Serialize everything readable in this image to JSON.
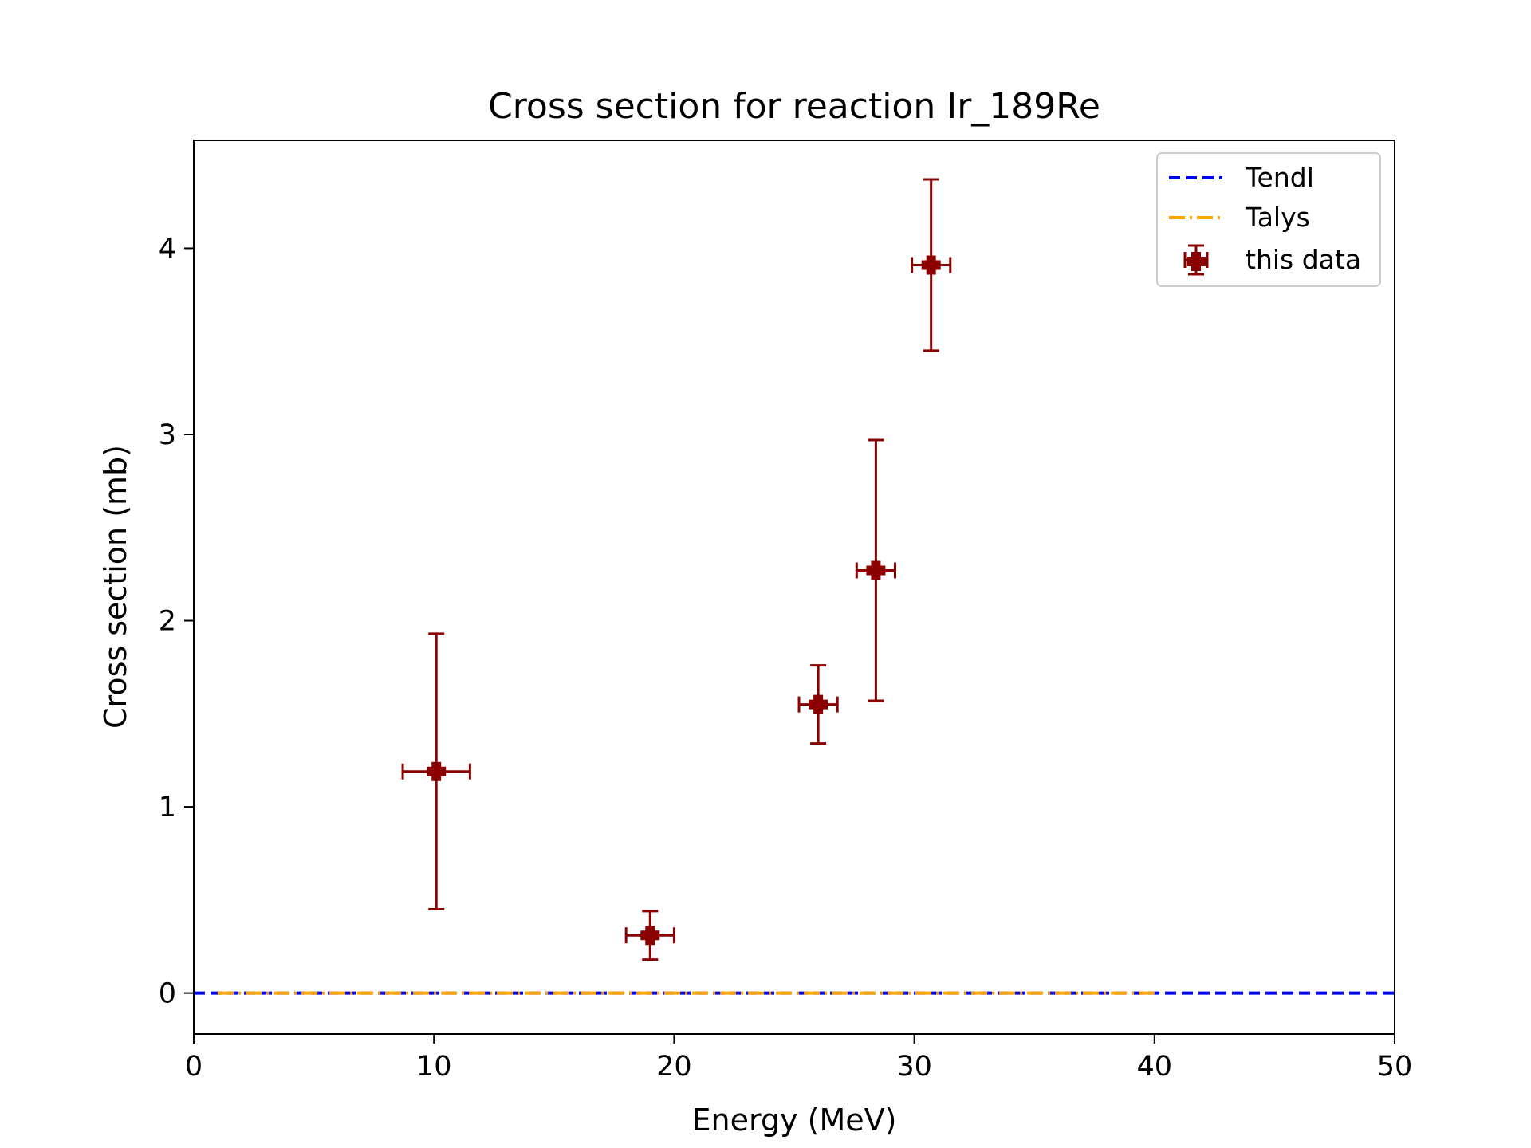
{
  "chart_data": {
    "type": "scatter",
    "title": "Cross section for reaction Ir_189Re",
    "xlabel": "Energy (MeV)",
    "ylabel": "Cross section (mb)",
    "xlim": [
      0,
      50
    ],
    "ylim": [
      -0.22,
      4.58
    ],
    "xticks": [
      0,
      10,
      20,
      30,
      40,
      50
    ],
    "yticks": [
      0,
      1,
      2,
      3,
      4
    ],
    "grid": false,
    "legend_position": "top-right",
    "series": [
      {
        "name": "Tendl",
        "kind": "line",
        "style": "dashed",
        "color": "#0000ff",
        "x": [
          0,
          50
        ],
        "y": [
          0,
          0
        ]
      },
      {
        "name": "Talys",
        "kind": "line",
        "style": "dashdot",
        "color": "#ffa500",
        "x": [
          1,
          40
        ],
        "y": [
          0,
          0
        ]
      },
      {
        "name": "this data",
        "kind": "errorbar",
        "color": "#8b0000",
        "points": [
          {
            "x": 10.1,
            "y": 1.19,
            "xerr": 1.4,
            "yerr": 0.74
          },
          {
            "x": 19.0,
            "y": 0.31,
            "xerr": 1.0,
            "yerr": 0.13
          },
          {
            "x": 26.0,
            "y": 1.55,
            "xerr": 0.8,
            "yerr": 0.21
          },
          {
            "x": 28.4,
            "y": 2.27,
            "xerr": 0.8,
            "yerr": 0.7
          },
          {
            "x": 30.7,
            "y": 3.91,
            "xerr": 0.8,
            "yerr": 0.46
          }
        ]
      }
    ]
  }
}
